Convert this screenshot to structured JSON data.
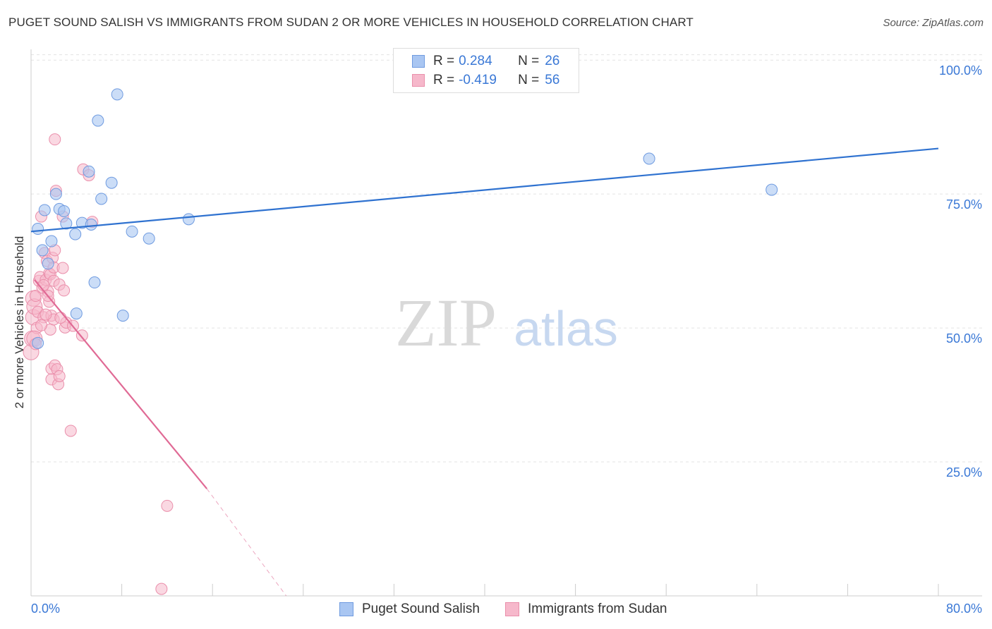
{
  "title": "PUGET SOUND SALISH VS IMMIGRANTS FROM SUDAN 2 OR MORE VEHICLES IN HOUSEHOLD CORRELATION CHART",
  "source": "Source: ZipAtlas.com",
  "watermark": {
    "zip": "ZIP",
    "atlas": "atlas"
  },
  "legend": {
    "series1": {
      "r_label": "R =",
      "r_value": "0.284",
      "n_label": "N =",
      "n_value": "26"
    },
    "series2": {
      "r_label": "R =",
      "r_value": "-0.419",
      "n_label": "N =",
      "n_value": "56"
    }
  },
  "bottom_legend": {
    "series1": "Puget Sound Salish",
    "series2": "Immigrants from Sudan"
  },
  "colors": {
    "blue_fill": "#a9c6f2",
    "blue_stroke": "#6f9be0",
    "blue_line": "#2f72d0",
    "pink_fill": "#f6b8cb",
    "pink_stroke": "#ea8fab",
    "pink_line": "#e06a95",
    "tick_text": "#3a78d6",
    "grid": "#e3e3e3"
  },
  "chart_data": {
    "type": "scatter",
    "title": "PUGET SOUND SALISH VS IMMIGRANTS FROM SUDAN 2 OR MORE VEHICLES IN HOUSEHOLD CORRELATION CHART",
    "xlabel": "",
    "ylabel": "2 or more Vehicles in Household",
    "xlim": [
      0,
      80
    ],
    "ylim": [
      0,
      102
    ],
    "x_tick_labels": [
      "0.0%",
      "80.0%"
    ],
    "y_ticks": [
      25,
      50,
      75,
      100
    ],
    "y_tick_labels": [
      "25.0%",
      "50.0%",
      "75.0%",
      "100.0%"
    ],
    "grid": true,
    "legend_position": "top-center",
    "series": [
      {
        "name": "Puget Sound Salish",
        "color": "#a9c6f2",
        "points": [
          [
            0.6,
            68.5
          ],
          [
            0.6,
            47.2
          ],
          [
            1.0,
            64.5
          ],
          [
            1.2,
            72.0
          ],
          [
            1.5,
            62.0
          ],
          [
            1.8,
            66.2
          ],
          [
            2.2,
            75.0
          ],
          [
            2.5,
            72.2
          ],
          [
            2.9,
            71.8
          ],
          [
            3.1,
            69.5
          ],
          [
            3.9,
            67.5
          ],
          [
            4.0,
            52.7
          ],
          [
            4.5,
            69.6
          ],
          [
            5.1,
            79.2
          ],
          [
            5.3,
            69.3
          ],
          [
            5.6,
            58.5
          ],
          [
            5.9,
            88.7
          ],
          [
            6.2,
            74.1
          ],
          [
            7.1,
            77.1
          ],
          [
            7.6,
            93.6
          ],
          [
            8.1,
            52.3
          ],
          [
            8.9,
            68.0
          ],
          [
            10.4,
            66.7
          ],
          [
            13.9,
            70.3
          ],
          [
            54.5,
            81.6
          ],
          [
            65.3,
            75.8
          ]
        ],
        "trendline": {
          "x": [
            0,
            80
          ],
          "y": [
            68.0,
            83.5
          ]
        }
      },
      {
        "name": "Immigrants from Sudan",
        "color": "#f6b8cb",
        "points": [
          [
            0.0,
            45.5
          ],
          [
            0.1,
            48.0
          ],
          [
            0.2,
            52.0
          ],
          [
            0.2,
            55.5
          ],
          [
            0.3,
            54.0
          ],
          [
            0.4,
            56.0
          ],
          [
            0.5,
            50.0
          ],
          [
            0.6,
            53.0
          ],
          [
            0.7,
            58.8
          ],
          [
            0.8,
            59.5
          ],
          [
            0.9,
            70.8
          ],
          [
            1.0,
            57.5
          ],
          [
            1.1,
            52.0
          ],
          [
            1.2,
            64.0
          ],
          [
            1.3,
            59.0
          ],
          [
            1.4,
            62.5
          ],
          [
            1.5,
            56.8
          ],
          [
            1.6,
            54.9
          ],
          [
            1.6,
            60.2
          ],
          [
            1.7,
            49.7
          ],
          [
            1.7,
            60.0
          ],
          [
            1.8,
            52.3
          ],
          [
            1.8,
            42.4
          ],
          [
            1.8,
            40.4
          ],
          [
            1.9,
            63.1
          ],
          [
            2.0,
            51.6
          ],
          [
            2.0,
            58.8
          ],
          [
            2.0,
            61.3
          ],
          [
            2.1,
            85.2
          ],
          [
            2.1,
            64.5
          ],
          [
            2.1,
            43.0
          ],
          [
            2.2,
            75.6
          ],
          [
            2.3,
            42.3
          ],
          [
            2.4,
            39.5
          ],
          [
            2.5,
            58.1
          ],
          [
            2.5,
            41.0
          ],
          [
            2.8,
            61.2
          ],
          [
            2.8,
            70.8
          ],
          [
            2.9,
            57.0
          ],
          [
            3.0,
            50.1
          ],
          [
            3.1,
            51.0
          ],
          [
            3.5,
            30.8
          ],
          [
            3.7,
            50.4
          ],
          [
            4.5,
            48.6
          ],
          [
            4.6,
            79.6
          ],
          [
            5.1,
            78.5
          ],
          [
            5.4,
            69.8
          ],
          [
            11.5,
            1.3
          ],
          [
            12.0,
            16.8
          ],
          [
            0.3,
            48.0
          ],
          [
            0.9,
            50.5
          ],
          [
            1.1,
            58.0
          ],
          [
            1.3,
            52.5
          ],
          [
            0.4,
            47.0
          ],
          [
            1.5,
            56.0
          ],
          [
            2.6,
            51.9
          ]
        ],
        "trendline": {
          "x": [
            0.3,
            15.5
          ],
          "y": [
            59.0,
            20.0
          ],
          "dashed_to": {
            "x": 22.5,
            "y": 0.0
          }
        }
      }
    ]
  }
}
